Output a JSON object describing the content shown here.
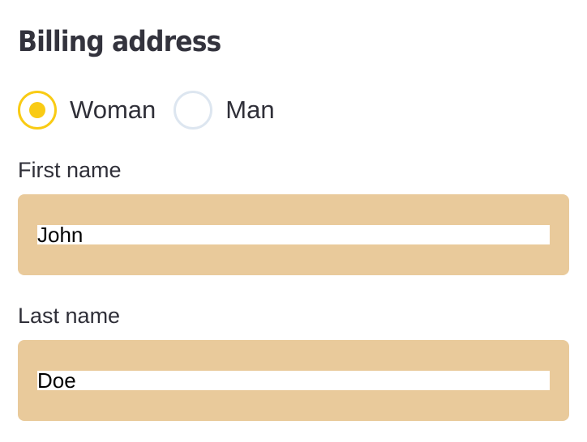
{
  "form": {
    "title": "Billing address",
    "gender": {
      "options": [
        {
          "label": "Woman",
          "checked": true
        },
        {
          "label": "Man",
          "checked": false
        }
      ]
    },
    "first_name": {
      "label": "First name",
      "value": "John"
    },
    "last_name": {
      "label": "Last name",
      "value": "Doe"
    }
  },
  "colors": {
    "accent": "#f9cb14",
    "radio_unchecked_border": "#dde6f0",
    "field_background": "#e9ca9b",
    "text": "#2f2f38"
  }
}
